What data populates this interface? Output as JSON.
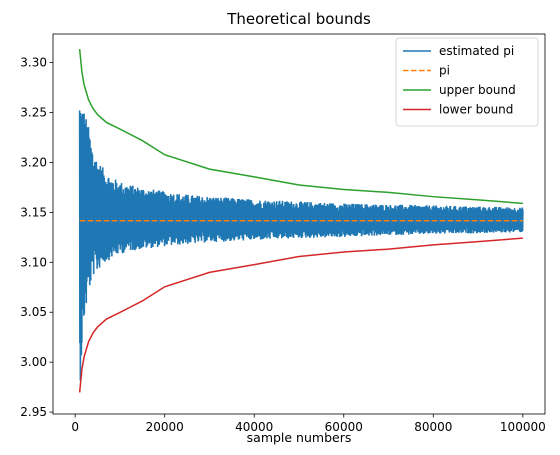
{
  "chart_data": {
    "type": "line",
    "title": "Theoretical bounds",
    "xlabel": "sample numbers",
    "ylabel": "",
    "xlim": [
      -4950,
      104950
    ],
    "ylim": [
      2.9481,
      3.3286
    ],
    "x_ticks": [
      0,
      20000,
      40000,
      60000,
      80000,
      100000
    ],
    "x_tick_labels": [
      "0",
      "20000",
      "40000",
      "60000",
      "80000",
      "100000"
    ],
    "y_ticks": [
      2.95,
      3.0,
      3.05,
      3.1,
      3.15,
      3.2,
      3.25,
      3.3
    ],
    "y_tick_labels": [
      "2.95",
      "3.00",
      "3.05",
      "3.10",
      "3.15",
      "3.20",
      "3.25",
      "3.30"
    ],
    "grid": false,
    "legend_position": "upper right",
    "series": [
      {
        "name": "estimated pi",
        "style": "solid",
        "color": "#1f77b4",
        "x": [
          1000,
          1500,
          2000,
          3000,
          4000,
          5000,
          6000,
          7000,
          8000,
          10000,
          12000,
          15000,
          20000,
          25000,
          30000,
          40000,
          50000,
          60000,
          70000,
          80000,
          90000,
          100000
        ],
        "y_min": [
          2.967,
          3.01,
          3.04,
          3.068,
          3.086,
          3.09,
          3.098,
          3.1,
          3.104,
          3.108,
          3.111,
          3.113,
          3.116,
          3.118,
          3.12,
          3.122,
          3.124,
          3.125,
          3.127,
          3.128,
          3.129,
          3.13
        ],
        "y_max": [
          3.276,
          3.262,
          3.255,
          3.236,
          3.214,
          3.203,
          3.196,
          3.191,
          3.186,
          3.181,
          3.178,
          3.175,
          3.171,
          3.168,
          3.166,
          3.163,
          3.161,
          3.159,
          3.158,
          3.157,
          3.156,
          3.155
        ]
      },
      {
        "name": "pi",
        "style": "dashed",
        "color": "#ff7f0e",
        "x": [
          1000,
          100000
        ],
        "y": [
          3.14159,
          3.14159
        ]
      },
      {
        "name": "upper bound",
        "style": "solid",
        "color": "#2ca02c",
        "x": [
          1000,
          1500,
          2000,
          3000,
          4000,
          5000,
          7000,
          10000,
          15000,
          20000,
          30000,
          40000,
          50000,
          60000,
          70000,
          80000,
          90000,
          100000
        ],
        "y": [
          3.3135,
          3.2906,
          3.2778,
          3.2627,
          3.2539,
          3.2479,
          3.24,
          3.2334,
          3.2219,
          3.2077,
          3.1933,
          3.1855,
          3.1774,
          3.1729,
          3.17,
          3.1657,
          3.1625,
          3.159
        ]
      },
      {
        "name": "lower bound",
        "style": "solid",
        "color": "#d62728",
        "x": [
          1000,
          1500,
          2000,
          3000,
          4000,
          5000,
          7000,
          10000,
          15000,
          20000,
          30000,
          40000,
          50000,
          60000,
          70000,
          80000,
          90000,
          100000
        ],
        "y": [
          2.9697,
          2.9926,
          3.0054,
          3.0205,
          3.0293,
          3.0353,
          3.0432,
          3.0498,
          3.0613,
          3.0755,
          3.0899,
          3.0977,
          3.1058,
          3.1103,
          3.1132,
          3.1175,
          3.1207,
          3.1242
        ]
      }
    ]
  }
}
